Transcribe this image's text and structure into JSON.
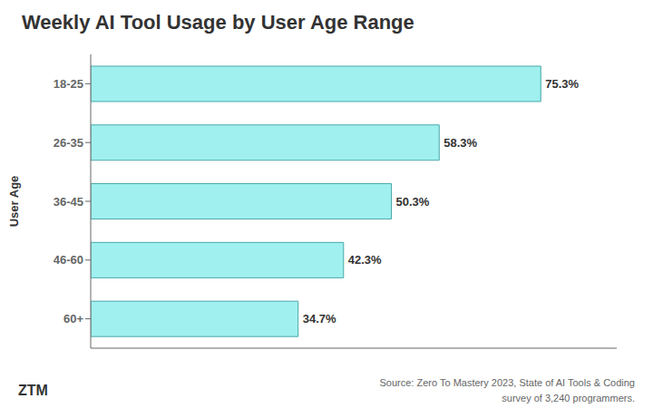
{
  "chart_data": {
    "type": "bar",
    "orientation": "horizontal",
    "title": "Weekly AI Tool Usage by User Age Range",
    "categories": [
      "18-25",
      "26-35",
      "36-45",
      "46-60",
      "60+"
    ],
    "values": [
      75.3,
      58.3,
      50.3,
      42.3,
      34.7
    ],
    "value_labels": [
      "75.3%",
      "58.3%",
      "50.3%",
      "42.3%",
      "34.7%"
    ],
    "data_labels": true,
    "color": "#a0f0f0",
    "xlim": [
      0,
      88
    ],
    "ylabel": "User Age",
    "tick_labels": "y",
    "grid": false,
    "annotations": [
      "Source: Zero To Mastery 2023, State of AI Tools & Coding\nsurvey of 3,240 programmers.",
      "ZTM"
    ]
  }
}
